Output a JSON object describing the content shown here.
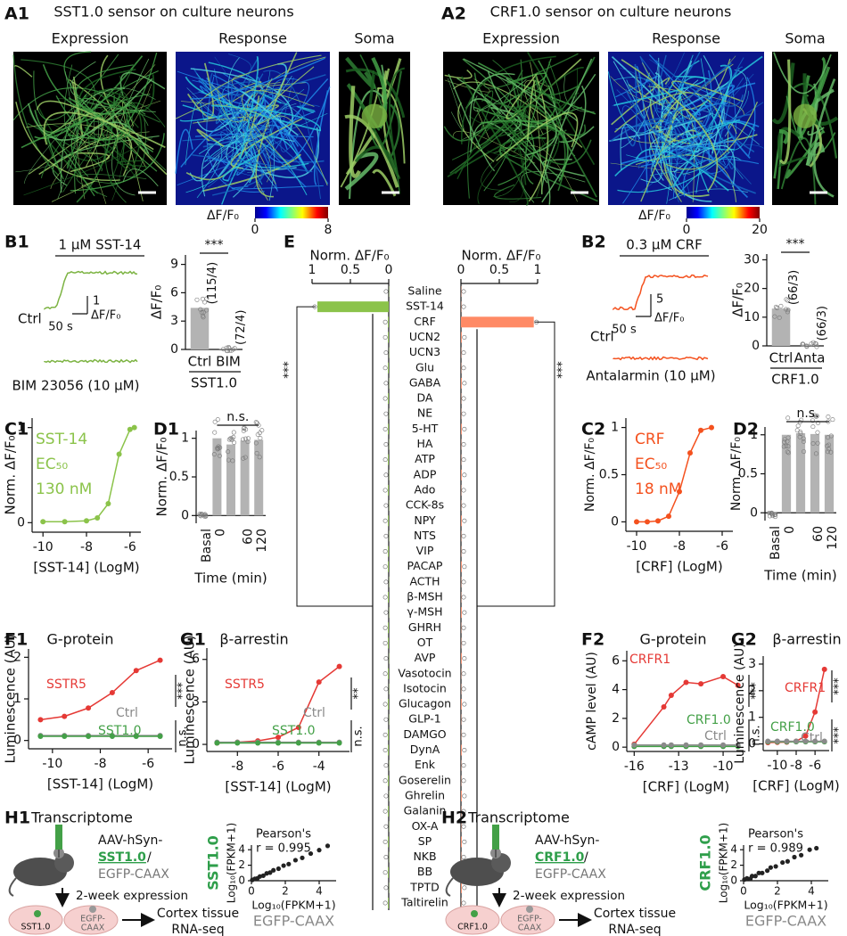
{
  "panels": {
    "A1": {
      "label": "A1",
      "title": "SST1.0 sensor on culture neurons",
      "image_titles": [
        "Expression",
        "Response",
        "Soma"
      ],
      "colorbar": {
        "label": "ΔF/F₀",
        "ticks": [
          0,
          8
        ]
      }
    },
    "A2": {
      "label": "A2",
      "title": "CRF1.0 sensor on culture neurons",
      "image_titles": [
        "Expression",
        "Response",
        "Soma"
      ],
      "colorbar": {
        "label": "ΔF/F₀",
        "ticks": [
          0,
          20
        ]
      }
    },
    "B1": {
      "label": "B1",
      "trace": {
        "stimulus": "1 µM SST-14",
        "control": "Ctrl",
        "blocker": "BIM 23056 (10 µM)",
        "scale_y": "1",
        "scale_y_unit": "ΔF/F₀",
        "scale_x": "50 s",
        "color": "#7cb342"
      },
      "chart": {
        "type": "bar",
        "ylabel": "ΔF/F₀",
        "categories": [
          "Ctrl",
          "BIM"
        ],
        "values": [
          4.4,
          0.1
        ],
        "n_labels": [
          "(115/4)",
          "(72/4)"
        ],
        "ylim": [
          0,
          10
        ],
        "yticks": [
          0,
          3,
          6,
          9
        ],
        "significance": "***",
        "group": "SST1.0",
        "color": "#b3b3b3"
      }
    },
    "B2": {
      "label": "B2",
      "trace": {
        "stimulus": "0.3 µM CRF",
        "control": "Ctrl",
        "blocker": "Antalarmin (10 µM)",
        "scale_y": "5",
        "scale_y_unit": "ΔF/F₀",
        "scale_x": "50 s",
        "color": "#f4511e"
      },
      "chart": {
        "type": "bar",
        "ylabel": "ΔF/F₀",
        "categories": [
          "Ctrl",
          "Anta"
        ],
        "values": [
          13,
          0.5
        ],
        "n_labels": [
          "(66/3)",
          "(66/3)"
        ],
        "ylim": [
          0,
          32
        ],
        "yticks": [
          0,
          10,
          20,
          30
        ],
        "significance": "***",
        "group": "CRF1.0",
        "color": "#b3b3b3"
      }
    },
    "C1": {
      "label": "C1",
      "chart": {
        "type": "line",
        "xlabel": "[SST-14] (LogM)",
        "ylabel": "Norm. ΔF/F₀",
        "annotations": [
          "SST-14",
          "EC₅₀",
          "130 nM"
        ],
        "xlim": [
          -10.5,
          -5.5
        ],
        "xticks": [
          -10,
          -8,
          -6
        ],
        "ylim": [
          -0.1,
          1.1
        ],
        "yticks": [
          0,
          1
        ],
        "series": [
          {
            "color": "#8bc34a",
            "x": [
              -10,
              -9,
              -8,
              -7.5,
              -7,
              -6.5,
              -6,
              -5.8
            ],
            "values": [
              0.01,
              0.01,
              0.02,
              0.05,
              0.2,
              0.72,
              0.98,
              1.0
            ]
          }
        ]
      }
    },
    "C2": {
      "label": "C2",
      "chart": {
        "type": "line",
        "xlabel": "[CRF] (LogM)",
        "ylabel": "Norm. ΔF/F₀",
        "annotations": [
          "CRF",
          "EC₅₀",
          "18 nM"
        ],
        "xlim": [
          -10.5,
          -5.5
        ],
        "xticks": [
          -10,
          -8,
          -6
        ],
        "ylim": [
          -0.1,
          1.1
        ],
        "yticks": [
          0,
          0.5,
          1
        ],
        "series": [
          {
            "color": "#f4511e",
            "x": [
              -10,
              -9.5,
              -9,
              -8.5,
              -8,
              -7.5,
              -7,
              -6.5
            ],
            "values": [
              0.0,
              0.0,
              0.01,
              0.06,
              0.32,
              0.73,
              0.97,
              1.0
            ]
          }
        ]
      }
    },
    "D1": {
      "label": "D1",
      "chart": {
        "type": "bar",
        "ylabel": "Norm. ΔF/F₀",
        "xlabel": "Time (min)",
        "categories": [
          "Basal",
          "0",
          null,
          "60",
          "120"
        ],
        "values": [
          0.02,
          1.0,
          0.92,
          0.97,
          0.98
        ],
        "ylim": [
          -0.1,
          1.1
        ],
        "yticks": [
          0,
          0.5,
          1
        ],
        "significance": "n.s.",
        "color": "#b3b3b3"
      }
    },
    "D2": {
      "label": "D2",
      "chart": {
        "type": "bar",
        "ylabel": "Norm. ΔF/F₀",
        "xlabel": "Time (min)",
        "categories": [
          "Basal",
          "0",
          null,
          "60",
          "120"
        ],
        "values": [
          -0.02,
          1.0,
          1.02,
          1.01,
          1.0
        ],
        "ylim": [
          -0.1,
          1.1
        ],
        "yticks": [
          0,
          0.5,
          1
        ],
        "significance": "n.s.",
        "color": "#b3b3b3"
      }
    },
    "E": {
      "label": "E",
      "chart": {
        "type": "hbar",
        "xlabel": "Norm. ΔF/F₀",
        "xlim": [
          0,
          1
        ],
        "xticks": [
          0,
          0.5,
          1
        ],
        "significance": "***",
        "categories": [
          "Saline",
          "SST-14",
          "CRF",
          "UCN2",
          "UCN3",
          "Glu",
          "GABA",
          "DA",
          "NE",
          "5-HT",
          "HA",
          "ATP",
          "ADP",
          "Ado",
          "CCK-8s",
          "NPY",
          "NTS",
          "VIP",
          "PACAP",
          "ACTH",
          "β-MSH",
          "γ-MSH",
          "GHRH",
          "OT",
          "AVP",
          "Vasotocin",
          "Isotocin",
          "Glucagon",
          "GLP-1",
          "DAMGO",
          "DynA",
          "Enk",
          "Goserelin",
          "Ghrelin",
          "Galanin",
          "OX-A",
          "SP",
          "NKB",
          "BB",
          "TPTD",
          "Taltirelin"
        ],
        "series": [
          {
            "color": "#8bc34a",
            "values": [
              0.0,
              0.93,
              0.01,
              0.01,
              0.0,
              0.01,
              0.0,
              0.01,
              0.0,
              0.01,
              0.0,
              0.01,
              0.0,
              0.01,
              0.0,
              0.01,
              0.0,
              0.01,
              0.01,
              0.0,
              0.01,
              0.0,
              0.01,
              0.01,
              0.0,
              0.01,
              0.0,
              0.01,
              0.0,
              0.01,
              0.01,
              0.0,
              0.01,
              0.0,
              0.01,
              0.0,
              0.01,
              0.0,
              0.01,
              0.0,
              0.01
            ]
          },
          {
            "color": "#ff8a65",
            "values": [
              0.0,
              0.0,
              0.95,
              0.01,
              0.0,
              0.0,
              0.01,
              0.0,
              0.0,
              0.01,
              0.0,
              0.0,
              0.01,
              0.0,
              0.0,
              0.01,
              0.0,
              0.0,
              0.01,
              0.0,
              0.0,
              0.01,
              0.0,
              0.0,
              0.01,
              0.0,
              0.0,
              0.01,
              0.0,
              0.0,
              0.01,
              0.0,
              0.0,
              0.01,
              0.0,
              0.0,
              0.01,
              0.0,
              0.0,
              0.01,
              0.0
            ]
          }
        ]
      }
    },
    "F1": {
      "label": "F1",
      "title": "G-protein",
      "chart": {
        "type": "line",
        "xlabel": "[SST-14] (LogM)",
        "ylabel": "Luminescence (AU)",
        "xlim": [
          -11,
          -5
        ],
        "xticks": [
          -10,
          -8,
          -6
        ],
        "ylim": [
          -0.2,
          2.2
        ],
        "yticks": [
          0,
          1,
          2
        ],
        "significance": [
          "***",
          "n.s."
        ],
        "series": [
          {
            "name": "SSTR5",
            "color": "#e53935",
            "x": [
              -10.5,
              -9.5,
              -8.5,
              -7.5,
              -6.5,
              -5.5
            ],
            "values": [
              0.5,
              0.58,
              0.78,
              1.15,
              1.68,
              1.93
            ]
          },
          {
            "name": "Ctrl",
            "color": "#8a8a8a",
            "x": [
              -10.5,
              -9.5,
              -8.5,
              -7.5,
              -6.5,
              -5.5
            ],
            "values": [
              0.12,
              0.12,
              0.12,
              0.12,
              0.12,
              0.12
            ]
          },
          {
            "name": "SST1.0",
            "color": "#43a047",
            "x": [
              -10.5,
              -9.5,
              -8.5,
              -7.5,
              -6.5,
              -5.5
            ],
            "values": [
              0.1,
              0.1,
              0.1,
              0.1,
              0.1,
              0.1
            ]
          }
        ]
      }
    },
    "G1": {
      "label": "G1",
      "title": "β-arrestin",
      "chart": {
        "type": "line",
        "xlabel": "[SST-14] (LogM)",
        "ylabel": "Luminescence (AU)",
        "xlim": [
          -9.5,
          -2.5
        ],
        "xticks": [
          -8,
          -6,
          -4
        ],
        "ylim": [
          -0.5,
          6.8
        ],
        "yticks": [
          0,
          3,
          6
        ],
        "significance": [
          "**",
          "n.s."
        ],
        "series": [
          {
            "name": "SSTR5",
            "color": "#e53935",
            "x": [
              -9,
              -8,
              -7,
              -6,
              -5,
              -4,
              -3
            ],
            "values": [
              0.1,
              0.15,
              0.25,
              0.5,
              1.2,
              4.4,
              5.5
            ]
          },
          {
            "name": "Ctrl",
            "color": "#8a8a8a",
            "x": [
              -9,
              -8,
              -7,
              -6,
              -5,
              -4,
              -3
            ],
            "values": [
              0.15,
              0.15,
              0.15,
              0.15,
              0.15,
              0.15,
              0.15
            ]
          },
          {
            "name": "SST1.0",
            "color": "#43a047",
            "x": [
              -9,
              -8,
              -7,
              -6,
              -5,
              -4,
              -3
            ],
            "values": [
              0.1,
              0.1,
              0.1,
              0.1,
              0.1,
              0.1,
              0.1
            ]
          }
        ]
      }
    },
    "F2": {
      "label": "F2",
      "title": "G-protein",
      "chart": {
        "type": "line",
        "xlabel": "[CRF] (LogM)",
        "ylabel": "cAMP level (AU)",
        "xlim": [
          -16.5,
          -8.5
        ],
        "xticks": [
          -16,
          -13,
          -10
        ],
        "ylim": [
          -0.3,
          6.7
        ],
        "yticks": [
          0,
          2,
          4,
          6
        ],
        "significance": [
          "***",
          "n.s."
        ],
        "series": [
          {
            "name": "CRFR1",
            "color": "#e53935",
            "x": [
              -16,
              -14,
              -13.5,
              -12.5,
              -11.5,
              -10,
              -9
            ],
            "values": [
              0.2,
              2.8,
              3.6,
              4.5,
              4.4,
              4.9,
              4.3
            ]
          },
          {
            "name": "CRF1.0",
            "color": "#43a047",
            "x": [
              -16,
              -14,
              -13.5,
              -12.5,
              -11.5,
              -10,
              -9
            ],
            "values": [
              0.05,
              0.05,
              0.05,
              0.05,
              0.05,
              0.05,
              0.05
            ]
          },
          {
            "name": "Ctrl",
            "color": "#8a8a8a",
            "x": [
              -16,
              -14,
              -13.5,
              -12.5,
              -11.5,
              -10,
              -9
            ],
            "values": [
              0.15,
              0.15,
              0.15,
              0.15,
              0.15,
              0.15,
              0.15
            ]
          }
        ]
      }
    },
    "G2": {
      "label": "G2",
      "title": "β-arrestin",
      "chart": {
        "type": "line",
        "xlabel": "[CRF] (LogM)",
        "ylabel": "Luminescence (AU)",
        "xlim": [
          -11.5,
          -4.5
        ],
        "xticks": [
          -10,
          -8,
          -6
        ],
        "ylim": [
          -0.25,
          3.3
        ],
        "yticks": [
          0,
          1,
          2,
          3
        ],
        "significance": [
          "***",
          "***"
        ],
        "series": [
          {
            "name": "CRFR1",
            "color": "#e53935",
            "x": [
              -11,
              -10,
              -9,
              -8,
              -7,
              -6,
              -5
            ],
            "values": [
              0.05,
              0.06,
              0.07,
              0.1,
              0.3,
              1.2,
              2.8
            ]
          },
          {
            "name": "CRF1.0",
            "color": "#43a047",
            "x": [
              -11,
              -10,
              -9,
              -8,
              -7,
              -6,
              -5
            ],
            "values": [
              0.08,
              0.08,
              0.08,
              0.08,
              0.08,
              0.08,
              0.08
            ]
          },
          {
            "name": "Ctrl",
            "color": "#8a8a8a",
            "x": [
              -11,
              -10,
              -9,
              -8,
              -7,
              -6,
              -5
            ],
            "values": [
              0.1,
              0.1,
              0.1,
              0.1,
              0.1,
              0.1,
              0.1
            ]
          }
        ]
      }
    },
    "H1": {
      "label": "H1",
      "schematic": {
        "title": "Transcriptome",
        "virus": "AAV-hSyn-",
        "construct": "SST1.0",
        "separator": "/",
        "control": "EGFP-CAAX",
        "expression": "2-week expression",
        "brain_left": "SST1.0",
        "brain_right": [
          "EGFP-",
          "CAAX"
        ],
        "tissue": [
          "Cortex tissue",
          "RNA-seq"
        ]
      },
      "chart": {
        "type": "scatter",
        "caption": [
          "Pearson's",
          "r = 0.995"
        ],
        "xlabel": "Log₁₀(FPKM+1)",
        "ylabel": "Log₁₀(FPKM+1)",
        "x_group": "EGFP-CAAX",
        "y_group": "SST1.0",
        "xlim": [
          0,
          5
        ],
        "xticks": [
          0,
          2,
          4
        ],
        "ylim": [
          0,
          4.6
        ],
        "yticks": [
          0,
          2,
          4
        ],
        "x": [
          0.05,
          0.2,
          0.35,
          0.5,
          0.7,
          0.9,
          1.1,
          1.3,
          1.6,
          1.9,
          2.2,
          2.6,
          3.0,
          3.5,
          4.0,
          4.5
        ],
        "values": [
          0.1,
          0.25,
          0.3,
          0.55,
          0.65,
          0.95,
          1.05,
          1.35,
          1.55,
          1.95,
          2.15,
          2.65,
          2.95,
          3.5,
          3.95,
          4.5
        ]
      }
    },
    "H2": {
      "label": "H2",
      "schematic": {
        "title": "Transcriptome",
        "virus": "AAV-hSyn-",
        "construct": "CRF1.0",
        "separator": "/",
        "control": "EGFP-CAAX",
        "expression": "2-week expression",
        "brain_left": "CRF1.0",
        "brain_right": [
          "EGFP-",
          "CAAX"
        ],
        "tissue": [
          "Cortex tissue",
          "RNA-seq"
        ]
      },
      "chart": {
        "type": "scatter",
        "caption": [
          "Pearson's",
          "r = 0.989"
        ],
        "xlabel": "Log₁₀(FPKM+1)",
        "ylabel": "Log₁₀(FPKM+1)",
        "x_group": "EGFP-CAAX",
        "y_group": "CRF1.0",
        "xlim": [
          0,
          5
        ],
        "xticks": [
          0,
          2,
          4
        ],
        "ylim": [
          0,
          4.6
        ],
        "yticks": [
          0,
          2,
          4
        ],
        "x": [
          0.05,
          0.2,
          0.4,
          0.5,
          0.7,
          0.9,
          1.1,
          1.4,
          1.6,
          1.9,
          2.3,
          2.6,
          3.0,
          3.4,
          3.9,
          4.3
        ],
        "values": [
          0.15,
          0.3,
          0.25,
          0.6,
          0.6,
          1.0,
          1.0,
          1.3,
          1.7,
          1.85,
          2.35,
          2.5,
          3.05,
          3.3,
          4.0,
          4.2
        ]
      }
    }
  }
}
